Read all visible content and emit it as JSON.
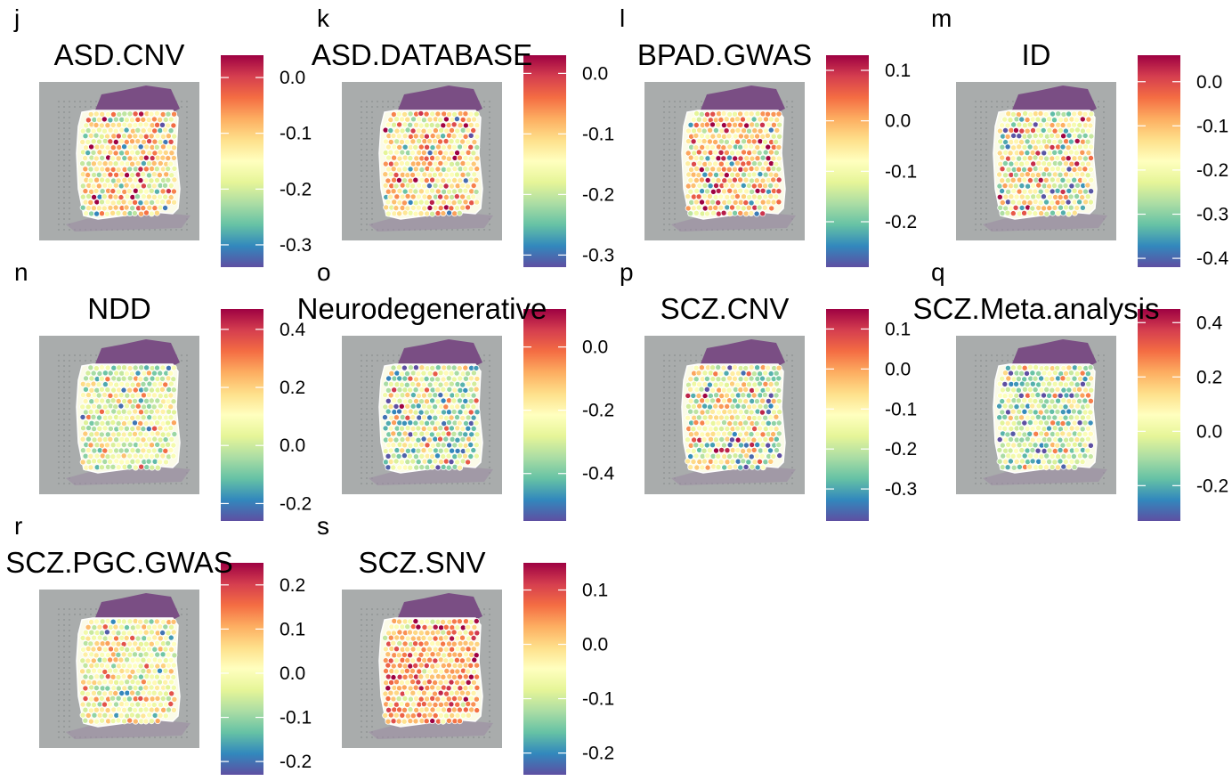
{
  "palette": [
    "#5e4fa2",
    "#3288bd",
    "#66c2a5",
    "#abdda4",
    "#e6f598",
    "#ffffbf",
    "#fee08b",
    "#fdae61",
    "#f46d43",
    "#d53e4f",
    "#9e0142"
  ],
  "tissue_colors": {
    "background": "#a9acac",
    "tissue": "#7a4e84",
    "spot_border": "#ffffff"
  },
  "panels": [
    {
      "letter": "j",
      "title": "ASD.CNV",
      "range": [
        -0.34,
        0.04
      ],
      "ticks": [
        0.0,
        -0.1,
        -0.2,
        -0.3
      ],
      "tick_labels": [
        "0.0",
        "-0.1",
        "-0.2",
        "-0.3"
      ],
      "center": -0.13,
      "spread": 0.07
    },
    {
      "letter": "k",
      "title": "ASD.DATABASE",
      "range": [
        -0.32,
        0.03
      ],
      "ticks": [
        0.0,
        -0.1,
        -0.2,
        -0.3
      ],
      "tick_labels": [
        "0.0",
        "-0.1",
        "-0.2",
        "-0.3"
      ],
      "center": -0.12,
      "spread": 0.07
    },
    {
      "letter": "l",
      "title": "BPAD.GWAS",
      "range": [
        -0.29,
        0.13
      ],
      "ticks": [
        0.1,
        0.0,
        -0.1,
        -0.2
      ],
      "tick_labels": [
        "0.1",
        "0.0",
        "-0.1",
        "-0.2"
      ],
      "center": -0.03,
      "spread": 0.08
    },
    {
      "letter": "m",
      "title": "ID",
      "range": [
        -0.42,
        0.06
      ],
      "ticks": [
        0.0,
        -0.1,
        -0.2,
        -0.3,
        -0.4
      ],
      "tick_labels": [
        "0.0",
        "-0.1",
        "-0.2",
        "-0.3",
        "-0.4"
      ],
      "center": -0.18,
      "spread": 0.09
    },
    {
      "letter": "n",
      "title": "NDD",
      "range": [
        -0.26,
        0.47
      ],
      "ticks": [
        0.4,
        0.2,
        0.0,
        -0.2
      ],
      "tick_labels": [
        "0.4",
        "0.2",
        "0.0",
        "-0.2"
      ],
      "center": 0.05,
      "spread": 0.1
    },
    {
      "letter": "o",
      "title": "Neurodegenerative",
      "range": [
        -0.55,
        0.12
      ],
      "ticks": [
        0.0,
        -0.2,
        -0.4
      ],
      "tick_labels": [
        "0.0",
        "-0.2",
        "-0.4"
      ],
      "center": -0.3,
      "spread": 0.12
    },
    {
      "letter": "p",
      "title": "SCZ.CNV",
      "range": [
        -0.38,
        0.15
      ],
      "ticks": [
        0.1,
        0.0,
        -0.1,
        -0.2,
        -0.3
      ],
      "tick_labels": [
        "0.1",
        "0.0",
        "-0.1",
        "-0.2",
        "-0.3"
      ],
      "center": -0.14,
      "spread": 0.1
    },
    {
      "letter": "q",
      "title": "SCZ.Meta.analysis",
      "range": [
        -0.33,
        0.45
      ],
      "ticks": [
        0.4,
        0.2,
        0.0,
        -0.2
      ],
      "tick_labels": [
        "0.4",
        "0.2",
        "0.0",
        "-0.2"
      ],
      "center": -0.04,
      "spread": 0.12
    },
    {
      "letter": "r",
      "title": "SCZ.PGC.GWAS",
      "range": [
        -0.23,
        0.25
      ],
      "ticks": [
        0.2,
        0.1,
        0.0,
        -0.1,
        -0.2
      ],
      "tick_labels": [
        "0.2",
        "0.1",
        "0.0",
        "-0.1",
        "-0.2"
      ],
      "center": 0.0,
      "spread": 0.07
    },
    {
      "letter": "s",
      "title": "SCZ.SNV",
      "range": [
        -0.24,
        0.15
      ],
      "ticks": [
        0.1,
        0.0,
        -0.1,
        -0.2
      ],
      "tick_labels": [
        "0.1",
        "0.0",
        "-0.1",
        "-0.2"
      ],
      "center": 0.03,
      "spread": 0.05
    }
  ],
  "chart_data": [
    {
      "type": "heatmap",
      "title": "ASD.CNV",
      "colorbar_ticks": [
        "0.0",
        "-0.1",
        "-0.2",
        "-0.3"
      ],
      "value_range": [
        -0.34,
        0.04
      ]
    },
    {
      "type": "heatmap",
      "title": "ASD.DATABASE",
      "colorbar_ticks": [
        "0.0",
        "-0.1",
        "-0.2",
        "-0.3"
      ],
      "value_range": [
        -0.32,
        0.03
      ]
    },
    {
      "type": "heatmap",
      "title": "BPAD.GWAS",
      "colorbar_ticks": [
        "0.1",
        "0.0",
        "-0.1",
        "-0.2"
      ],
      "value_range": [
        -0.29,
        0.13
      ]
    },
    {
      "type": "heatmap",
      "title": "ID",
      "colorbar_ticks": [
        "0.0",
        "-0.1",
        "-0.2",
        "-0.3",
        "-0.4"
      ],
      "value_range": [
        -0.42,
        0.06
      ]
    },
    {
      "type": "heatmap",
      "title": "NDD",
      "colorbar_ticks": [
        "0.4",
        "0.2",
        "0.0",
        "-0.2"
      ],
      "value_range": [
        -0.26,
        0.47
      ]
    },
    {
      "type": "heatmap",
      "title": "Neurodegenerative",
      "colorbar_ticks": [
        "0.0",
        "-0.2",
        "-0.4"
      ],
      "value_range": [
        -0.55,
        0.12
      ]
    },
    {
      "type": "heatmap",
      "title": "SCZ.CNV",
      "colorbar_ticks": [
        "0.1",
        "0.0",
        "-0.1",
        "-0.2",
        "-0.3"
      ],
      "value_range": [
        -0.38,
        0.15
      ]
    },
    {
      "type": "heatmap",
      "title": "SCZ.Meta.analysis",
      "colorbar_ticks": [
        "0.4",
        "0.2",
        "0.0",
        "-0.2"
      ],
      "value_range": [
        -0.33,
        0.45
      ]
    },
    {
      "type": "heatmap",
      "title": "SCZ.PGC.GWAS",
      "colorbar_ticks": [
        "0.2",
        "0.1",
        "0.0",
        "-0.1",
        "-0.2"
      ],
      "value_range": [
        -0.23,
        0.25
      ]
    },
    {
      "type": "heatmap",
      "title": "SCZ.SNV",
      "colorbar_ticks": [
        "0.1",
        "0.0",
        "-0.1",
        "-0.2"
      ],
      "value_range": [
        -0.24,
        0.15
      ]
    }
  ]
}
